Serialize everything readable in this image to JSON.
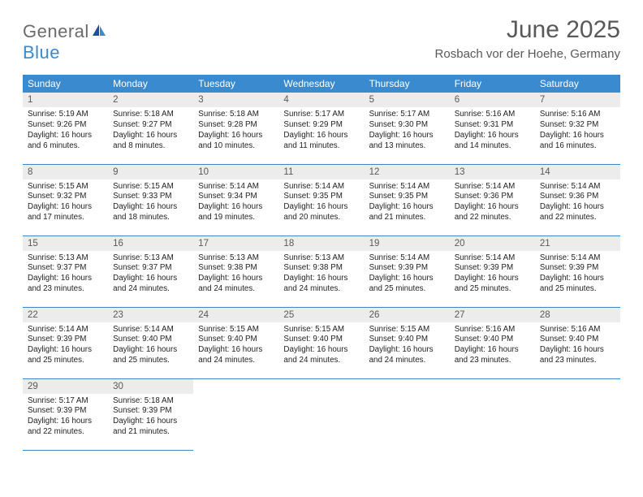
{
  "brand": {
    "general": "General",
    "blue": "Blue"
  },
  "title": "June 2025",
  "location": "Rosbach vor der Hoehe, Germany",
  "colors": {
    "header_bg": "#3a8ad0",
    "header_text": "#ffffff",
    "daynum_bg": "#ececec",
    "text_muted": "#595959",
    "text_body": "#222222",
    "rule": "#3a8ad0"
  },
  "weekdays": [
    "Sunday",
    "Monday",
    "Tuesday",
    "Wednesday",
    "Thursday",
    "Friday",
    "Saturday"
  ],
  "days": [
    {
      "n": "1",
      "sr": "5:19 AM",
      "ss": "9:26 PM",
      "dl": "16 hours and 6 minutes."
    },
    {
      "n": "2",
      "sr": "5:18 AM",
      "ss": "9:27 PM",
      "dl": "16 hours and 8 minutes."
    },
    {
      "n": "3",
      "sr": "5:18 AM",
      "ss": "9:28 PM",
      "dl": "16 hours and 10 minutes."
    },
    {
      "n": "4",
      "sr": "5:17 AM",
      "ss": "9:29 PM",
      "dl": "16 hours and 11 minutes."
    },
    {
      "n": "5",
      "sr": "5:17 AM",
      "ss": "9:30 PM",
      "dl": "16 hours and 13 minutes."
    },
    {
      "n": "6",
      "sr": "5:16 AM",
      "ss": "9:31 PM",
      "dl": "16 hours and 14 minutes."
    },
    {
      "n": "7",
      "sr": "5:16 AM",
      "ss": "9:32 PM",
      "dl": "16 hours and 16 minutes."
    },
    {
      "n": "8",
      "sr": "5:15 AM",
      "ss": "9:32 PM",
      "dl": "16 hours and 17 minutes."
    },
    {
      "n": "9",
      "sr": "5:15 AM",
      "ss": "9:33 PM",
      "dl": "16 hours and 18 minutes."
    },
    {
      "n": "10",
      "sr": "5:14 AM",
      "ss": "9:34 PM",
      "dl": "16 hours and 19 minutes."
    },
    {
      "n": "11",
      "sr": "5:14 AM",
      "ss": "9:35 PM",
      "dl": "16 hours and 20 minutes."
    },
    {
      "n": "12",
      "sr": "5:14 AM",
      "ss": "9:35 PM",
      "dl": "16 hours and 21 minutes."
    },
    {
      "n": "13",
      "sr": "5:14 AM",
      "ss": "9:36 PM",
      "dl": "16 hours and 22 minutes."
    },
    {
      "n": "14",
      "sr": "5:14 AM",
      "ss": "9:36 PM",
      "dl": "16 hours and 22 minutes."
    },
    {
      "n": "15",
      "sr": "5:13 AM",
      "ss": "9:37 PM",
      "dl": "16 hours and 23 minutes."
    },
    {
      "n": "16",
      "sr": "5:13 AM",
      "ss": "9:37 PM",
      "dl": "16 hours and 24 minutes."
    },
    {
      "n": "17",
      "sr": "5:13 AM",
      "ss": "9:38 PM",
      "dl": "16 hours and 24 minutes."
    },
    {
      "n": "18",
      "sr": "5:13 AM",
      "ss": "9:38 PM",
      "dl": "16 hours and 24 minutes."
    },
    {
      "n": "19",
      "sr": "5:14 AM",
      "ss": "9:39 PM",
      "dl": "16 hours and 25 minutes."
    },
    {
      "n": "20",
      "sr": "5:14 AM",
      "ss": "9:39 PM",
      "dl": "16 hours and 25 minutes."
    },
    {
      "n": "21",
      "sr": "5:14 AM",
      "ss": "9:39 PM",
      "dl": "16 hours and 25 minutes."
    },
    {
      "n": "22",
      "sr": "5:14 AM",
      "ss": "9:39 PM",
      "dl": "16 hours and 25 minutes."
    },
    {
      "n": "23",
      "sr": "5:14 AM",
      "ss": "9:40 PM",
      "dl": "16 hours and 25 minutes."
    },
    {
      "n": "24",
      "sr": "5:15 AM",
      "ss": "9:40 PM",
      "dl": "16 hours and 24 minutes."
    },
    {
      "n": "25",
      "sr": "5:15 AM",
      "ss": "9:40 PM",
      "dl": "16 hours and 24 minutes."
    },
    {
      "n": "26",
      "sr": "5:15 AM",
      "ss": "9:40 PM",
      "dl": "16 hours and 24 minutes."
    },
    {
      "n": "27",
      "sr": "5:16 AM",
      "ss": "9:40 PM",
      "dl": "16 hours and 23 minutes."
    },
    {
      "n": "28",
      "sr": "5:16 AM",
      "ss": "9:40 PM",
      "dl": "16 hours and 23 minutes."
    },
    {
      "n": "29",
      "sr": "5:17 AM",
      "ss": "9:39 PM",
      "dl": "16 hours and 22 minutes."
    },
    {
      "n": "30",
      "sr": "5:18 AM",
      "ss": "9:39 PM",
      "dl": "16 hours and 21 minutes."
    }
  ],
  "labels": {
    "sunrise": "Sunrise:",
    "sunset": "Sunset:",
    "daylight": "Daylight:"
  }
}
